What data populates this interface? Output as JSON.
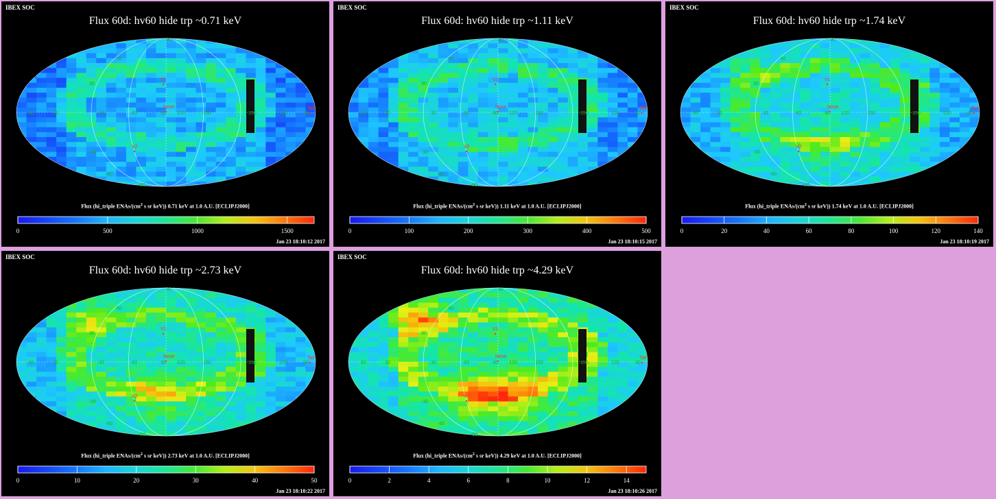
{
  "app": {
    "header": "IBEX SOC"
  },
  "caption_prefix": "Flux (hi_triple ENAs/(cm",
  "caption_sup": "2",
  "caption_mid": " s sr keV))",
  "caption_suffix": " at 1.0 A.U. [ECLIPJ2000]",
  "panels": [
    {
      "title": "Flux   60d: hv60 hide trp ~0.71 keV",
      "energy": "0.71 keV",
      "timestamp": "Jan 23 18:10:12 2017",
      "ticks": [
        "0",
        "500",
        "1000",
        "1500"
      ],
      "tick_values": [
        0,
        500,
        1000,
        1500
      ],
      "max": 1650,
      "level": 0.3,
      "hot": 0.0
    },
    {
      "title": "Flux   60d: hv60 hide trp ~1.11 keV",
      "energy": "1.11 keV",
      "timestamp": "Jan 23 18:10:15 2017",
      "ticks": [
        "0",
        "100",
        "200",
        "300",
        "400",
        "500"
      ],
      "tick_values": [
        0,
        100,
        200,
        300,
        400,
        500
      ],
      "max": 500,
      "level": 0.34,
      "hot": 0.05
    },
    {
      "title": "Flux   60d: hv60 hide trp ~1.74 keV",
      "energy": "1.74 keV",
      "timestamp": "Jan 23 18:10:19 2017",
      "ticks": [
        "0",
        "20",
        "40",
        "60",
        "80",
        "100",
        "120",
        "140"
      ],
      "tick_values": [
        0,
        20,
        40,
        60,
        80,
        100,
        120,
        140
      ],
      "max": 140,
      "level": 0.4,
      "hot": 0.25
    },
    {
      "title": "Flux   60d: hv60 hide trp ~2.73 keV",
      "energy": "2.73 keV",
      "timestamp": "Jan 23 18:10:22 2017",
      "ticks": [
        "0",
        "10",
        "20",
        "30",
        "40",
        "50"
      ],
      "tick_values": [
        0,
        10,
        20,
        30,
        40,
        50
      ],
      "max": 50,
      "level": 0.44,
      "hot": 0.35
    },
    {
      "title": "Flux   60d: hv60 hide trp ~4.29 keV",
      "energy": "4.29 keV",
      "timestamp": "Jan 23 18:10:26 2017",
      "ticks": [
        "0",
        "2",
        "4",
        "6",
        "8",
        "10",
        "12",
        "14"
      ],
      "tick_values": [
        0,
        2,
        4,
        6,
        8,
        10,
        12,
        14
      ],
      "max": 15,
      "level": 0.5,
      "hot": 0.55
    }
  ],
  "map_labels": {
    "markers": [
      "V1",
      "V2",
      "Nose",
      "Tail"
    ],
    "longitudes": [
      "60",
      "30",
      "-30",
      "-60",
      "-90",
      "-120",
      "-150",
      "150",
      "120",
      "90"
    ],
    "latitudes": [
      "60",
      "30",
      "-30",
      "-60",
      "90",
      "-90"
    ]
  },
  "colors": {
    "background": "#dda0dd",
    "panel": "#000000",
    "marker": "#ff3030",
    "grid": "#ffffff"
  }
}
